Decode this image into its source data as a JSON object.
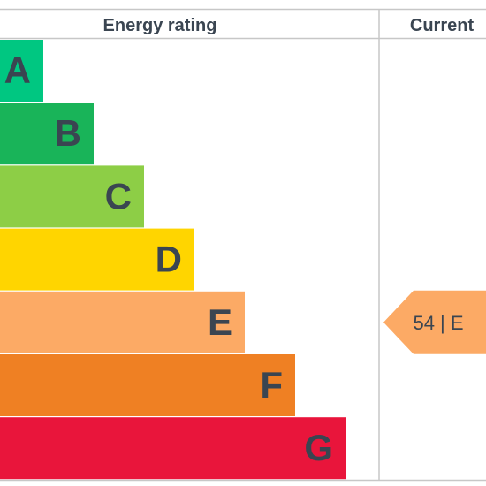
{
  "chart_data": {
    "type": "bar",
    "headers": {
      "rating": "Energy rating",
      "current": "Current"
    },
    "categories": [
      "A",
      "B",
      "C",
      "D",
      "E",
      "F",
      "G"
    ],
    "band_colors": [
      "#00c781",
      "#19b459",
      "#8dce46",
      "#ffd500",
      "#fcaa65",
      "#ef8023",
      "#e9153b"
    ],
    "current": {
      "score": 54,
      "band": "E",
      "label": "54 | E",
      "color": "#fcaa65"
    },
    "colors": {
      "grid": "#c7c7c7",
      "header_text": "#3a4551",
      "letter_text": "#3a4551",
      "marker_text": "#3a4551"
    }
  }
}
